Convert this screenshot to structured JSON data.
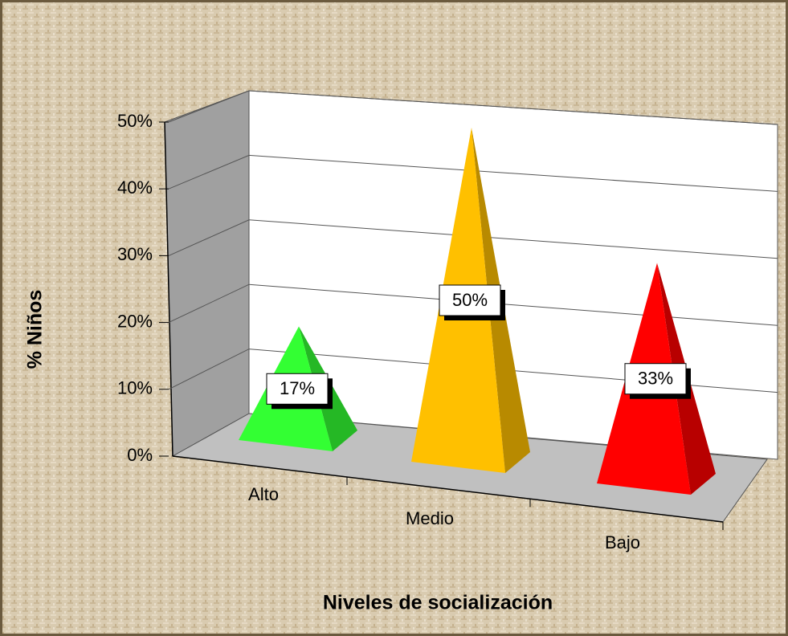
{
  "chart_data": {
    "type": "pyramid3d",
    "categories": [
      "Alto",
      "Medio",
      "Bajo"
    ],
    "values": [
      17,
      50,
      33
    ],
    "value_labels": [
      "17%",
      "50%",
      "33%"
    ],
    "colors": [
      "#33ff33",
      "#ffc000",
      "#ff0000"
    ],
    "ylim": [
      0,
      50
    ],
    "yticks": [
      {
        "value": 0,
        "label": "0%"
      },
      {
        "value": 10,
        "label": "10%"
      },
      {
        "value": 20,
        "label": "20%"
      },
      {
        "value": 30,
        "label": "30%"
      },
      {
        "value": 40,
        "label": "40%"
      },
      {
        "value": 50,
        "label": "50%"
      }
    ],
    "xlabel": "Niveles de socialización",
    "ylabel": "% Niños",
    "grid": true
  }
}
